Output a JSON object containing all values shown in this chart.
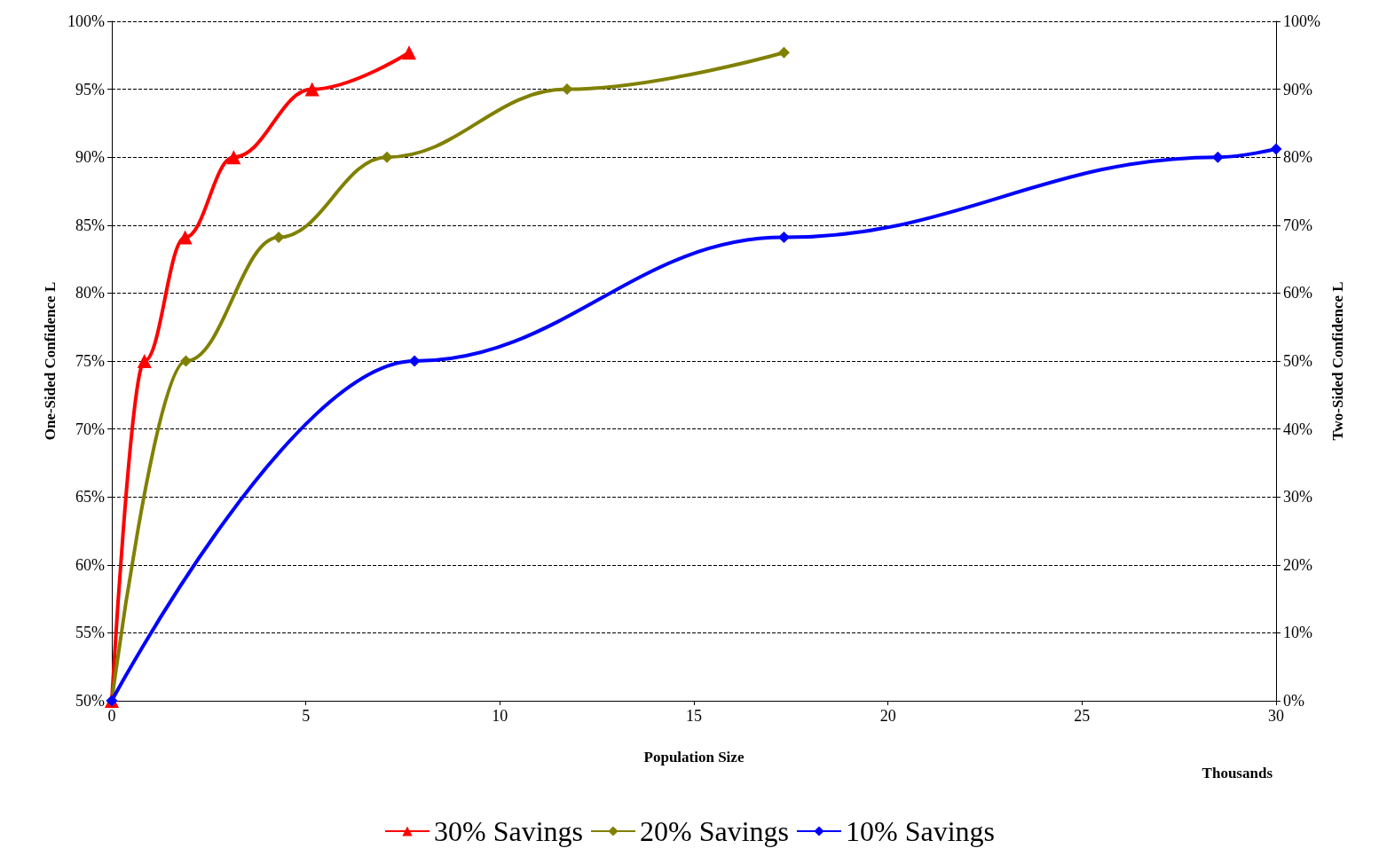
{
  "chart_data": {
    "type": "line",
    "xlabel": "Population Size",
    "ylabel": "One-Sided Confidence L",
    "y2label": "Two-Sided Confidence L",
    "annotations": [
      "Thousands"
    ],
    "xlim": [
      0,
      30
    ],
    "xticks": [
      0,
      5,
      10,
      15,
      20,
      25,
      30
    ],
    "ylim": [
      50,
      100
    ],
    "yticks": [
      {
        "value": 50,
        "label": "50%"
      },
      {
        "value": 55,
        "label": "55%"
      },
      {
        "value": 60,
        "label": "60%"
      },
      {
        "value": 65,
        "label": "65%"
      },
      {
        "value": 70,
        "label": "70%"
      },
      {
        "value": 75,
        "label": "75%"
      },
      {
        "value": 80,
        "label": "80%"
      },
      {
        "value": 85,
        "label": "85%"
      },
      {
        "value": 90,
        "label": "90%"
      },
      {
        "value": 95,
        "label": "95%"
      },
      {
        "value": 100,
        "label": "100%"
      }
    ],
    "y2lim": [
      0,
      100
    ],
    "y2ticks": [
      {
        "value": 0,
        "label": "0%"
      },
      {
        "value": 10,
        "label": "10%"
      },
      {
        "value": 20,
        "label": "20%"
      },
      {
        "value": 30,
        "label": "30%"
      },
      {
        "value": 40,
        "label": "40%"
      },
      {
        "value": 50,
        "label": "50%"
      },
      {
        "value": 60,
        "label": "60%"
      },
      {
        "value": 70,
        "label": "70%"
      },
      {
        "value": 80,
        "label": "80%"
      },
      {
        "value": 90,
        "label": "90%"
      },
      {
        "value": 100,
        "label": "100%"
      }
    ],
    "grid": "y",
    "legend": "bottom",
    "series": [
      {
        "name": "30% Savings",
        "color": "#ff0000",
        "marker": "triangle",
        "x": [
          0,
          0.84,
          1.89,
          3.14,
          5.16,
          7.66
        ],
        "values": [
          50,
          75,
          84.1,
          90,
          95,
          97.7
        ]
      },
      {
        "name": "20% Savings",
        "color": "#808000",
        "marker": "diamond",
        "x": [
          0,
          1.91,
          4.3,
          7.09,
          11.73,
          17.32
        ],
        "values": [
          50,
          75,
          84.1,
          90,
          95,
          97.7
        ]
      },
      {
        "name": "10% Savings",
        "color": "#0000ff",
        "marker": "diamond",
        "x": [
          0,
          7.8,
          17.32,
          28.5,
          30
        ],
        "values": [
          50,
          75,
          84.1,
          90,
          90.6
        ]
      }
    ]
  }
}
